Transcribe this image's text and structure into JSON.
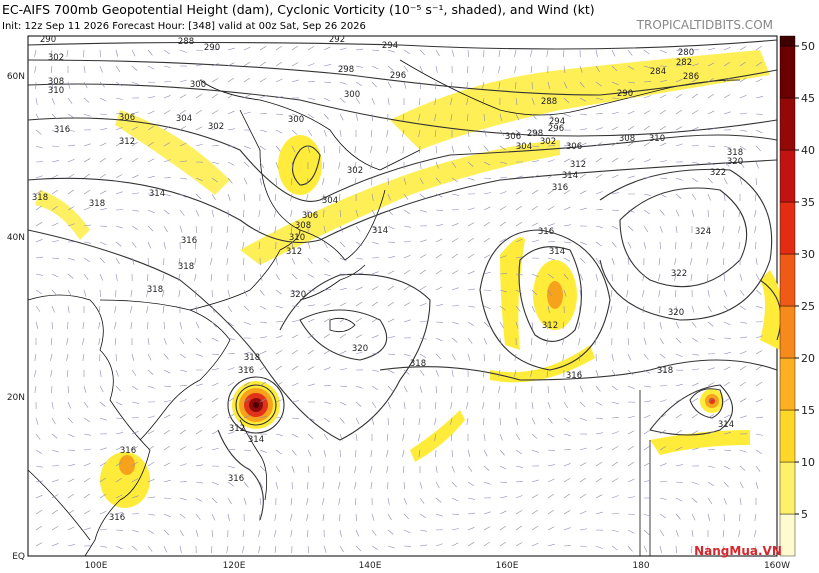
{
  "header": {
    "title": "EC-AIFS 700mb Geopotential Height (dam), Cyclonic Vorticity (10⁻⁵ s⁻¹, shaded), and Wind (kt)",
    "subtitle": "Init: 12z Sep 11 2026   Forecast Hour: [348]   valid at 00z Sat, Sep 26 2026",
    "site": "TROPICALTIDBITS.COM"
  },
  "map": {
    "lat_labels": [
      "60N",
      "40N",
      "20N",
      "EQ"
    ],
    "lon_labels": [
      "100E",
      "120E",
      "140E",
      "160E",
      "180",
      "160W"
    ],
    "contour_labels": [
      "290",
      "288",
      "290",
      "292",
      "294",
      "280",
      "282",
      "284",
      "286",
      "302",
      "308",
      "310",
      "300",
      "298",
      "296",
      "300",
      "288",
      "290",
      "294",
      "296",
      "298",
      "306",
      "304",
      "302",
      "306",
      "308",
      "310",
      "306",
      "304",
      "302",
      "312",
      "300",
      "316",
      "314",
      "318",
      "318",
      "302",
      "304",
      "306",
      "308",
      "310",
      "312",
      "314",
      "316",
      "318",
      "318",
      "320",
      "316",
      "314",
      "312",
      "314",
      "316",
      "318",
      "320",
      "322",
      "324",
      "322",
      "320",
      "312",
      "320",
      "318",
      "318",
      "316",
      "312",
      "314",
      "316",
      "316",
      "316",
      "318",
      "316",
      "314"
    ]
  },
  "colorbar": {
    "ticks": [
      5,
      10,
      15,
      20,
      25,
      30,
      35,
      40,
      45,
      50
    ]
  },
  "watermark": "NangMua.VN"
}
